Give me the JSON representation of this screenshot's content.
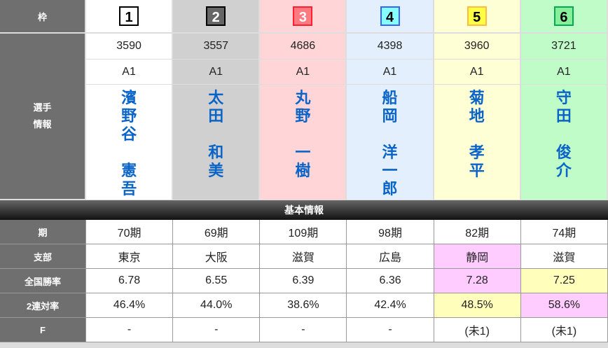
{
  "labels": {
    "waku": "枠",
    "player_info": "選手\n情報",
    "section": "基本情報",
    "period": "期",
    "branch": "支部",
    "national_rate": "全国勝率",
    "quinella_rate": "2連対率",
    "f": "F"
  },
  "racers": [
    {
      "waku": "1",
      "bg": "#ffffff",
      "box_bg": "#ffffff",
      "box_border": "#000000",
      "box_color": "#000000",
      "id": "3590",
      "class": "A1",
      "surname": "濱野谷",
      "given": "憲吾",
      "period": "70期",
      "branch": "東京",
      "national_rate": "6.78",
      "quinella_rate": "46.4%",
      "f": "-"
    },
    {
      "waku": "2",
      "bg": "#d0d0d0",
      "box_bg": "#666666",
      "box_border": "#000000",
      "box_color": "#ffffff",
      "id": "3557",
      "class": "A1",
      "surname": "太田",
      "given": "和美",
      "period": "69期",
      "branch": "大阪",
      "national_rate": "6.55",
      "quinella_rate": "44.0%",
      "f": "-"
    },
    {
      "waku": "3",
      "bg": "#ffd5d8",
      "box_bg": "#ff7a80",
      "box_border": "#ff2030",
      "box_color": "#ffffff",
      "id": "4686",
      "class": "A1",
      "surname": "丸野",
      "given": "一樹",
      "period": "109期",
      "branch": "滋賀",
      "national_rate": "6.39",
      "quinella_rate": "38.6%",
      "f": "-"
    },
    {
      "waku": "4",
      "bg": "#e3effc",
      "box_bg": "#88ffff",
      "box_border": "#3366ff",
      "box_color": "#000000",
      "id": "4398",
      "class": "A1",
      "surname": "船岡",
      "given": "洋一郎",
      "period": "98期",
      "branch": "広島",
      "national_rate": "6.36",
      "quinella_rate": "42.4%",
      "f": "-"
    },
    {
      "waku": "5",
      "bg": "#ffffd5",
      "box_bg": "#ffff44",
      "box_border": "#ffbb44",
      "box_color": "#000000",
      "id": "3960",
      "class": "A1",
      "surname": "菊地",
      "given": "孝平",
      "period": "82期",
      "branch": "静岡",
      "national_rate": "7.28",
      "quinella_rate": "48.5%",
      "f": "(未1)",
      "hl": {
        "branch": "pink",
        "national_rate": "pink",
        "quinella_rate": "yel"
      }
    },
    {
      "waku": "6",
      "bg": "#c0fcc8",
      "box_bg": "#88ee99",
      "box_border": "#00aa55",
      "box_color": "#000000",
      "id": "3721",
      "class": "A1",
      "surname": "守田",
      "given": "俊介",
      "period": "74期",
      "branch": "滋賀",
      "national_rate": "7.25",
      "quinella_rate": "58.6%",
      "f": "(未1)",
      "hl": {
        "national_rate": "yel",
        "quinella_rate": "pink"
      }
    }
  ]
}
